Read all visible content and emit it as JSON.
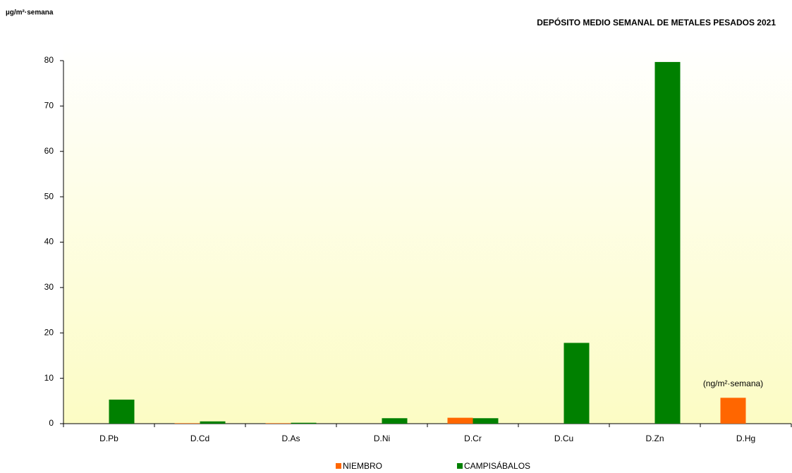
{
  "chart_data": {
    "type": "bar",
    "title": "DEPÓSITO MEDIO SEMANAL DE METALES PESADOS 2021",
    "y_label": "µg/m²·semana",
    "annotation": "(ng/m²·semana)",
    "categories": [
      "D.Pb",
      "D.Cd",
      "D.As",
      "D.Ni",
      "D.Cr",
      "D.Cu",
      "D.Zn",
      "D.Hg"
    ],
    "series": [
      {
        "name": "NIEMBRO",
        "color": "#ff6600",
        "values": [
          null,
          0.1,
          0.1,
          null,
          1.3,
          null,
          null,
          5.7
        ]
      },
      {
        "name": "CAMPISÁBALOS",
        "color": "#008000",
        "values": [
          5.3,
          0.5,
          0.2,
          1.2,
          1.2,
          17.8,
          79.7,
          null
        ]
      }
    ],
    "ylim": [
      0,
      80
    ],
    "yticks": [
      0,
      10,
      20,
      30,
      40,
      50,
      60,
      70,
      80
    ],
    "grid": false,
    "legend": "bottom"
  }
}
